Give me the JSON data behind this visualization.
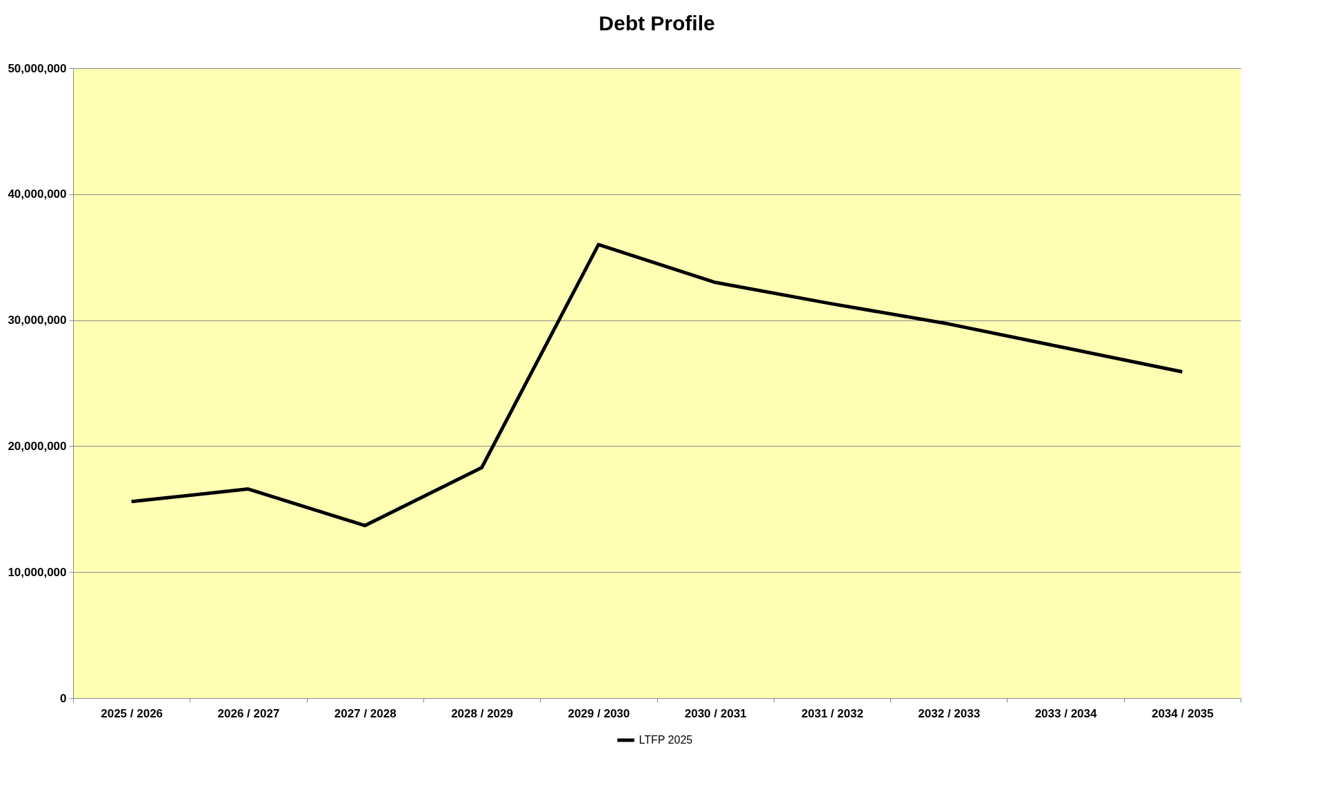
{
  "chart_data": {
    "type": "line",
    "title": "Debt Profile",
    "categories": [
      "2025 / 2026",
      "2026 / 2027",
      "2027 / 2028",
      "2028 / 2029",
      "2029 / 2030",
      "2030 / 2031",
      "2031 / 2032",
      "2032 / 2033",
      "2033 / 2034",
      "2034 / 2035"
    ],
    "series": [
      {
        "name": "LTFP 2025",
        "color": "#000000",
        "values": [
          15600000,
          16600000,
          13700000,
          18300000,
          36000000,
          33000000,
          31300000,
          29700000,
          27800000,
          25900000
        ]
      }
    ],
    "ylim": [
      0,
      50000000
    ],
    "yticks": [
      {
        "value": 0,
        "label": "0"
      },
      {
        "value": 10000000,
        "label": "10,000,000"
      },
      {
        "value": 20000000,
        "label": "20,000,000"
      },
      {
        "value": 30000000,
        "label": "30,000,000"
      },
      {
        "value": 40000000,
        "label": "40,000,000"
      },
      {
        "value": 50000000,
        "label": "50,000,000"
      }
    ],
    "grid": "y",
    "legend": "bottom",
    "marker": "none",
    "line_style": "solid"
  }
}
